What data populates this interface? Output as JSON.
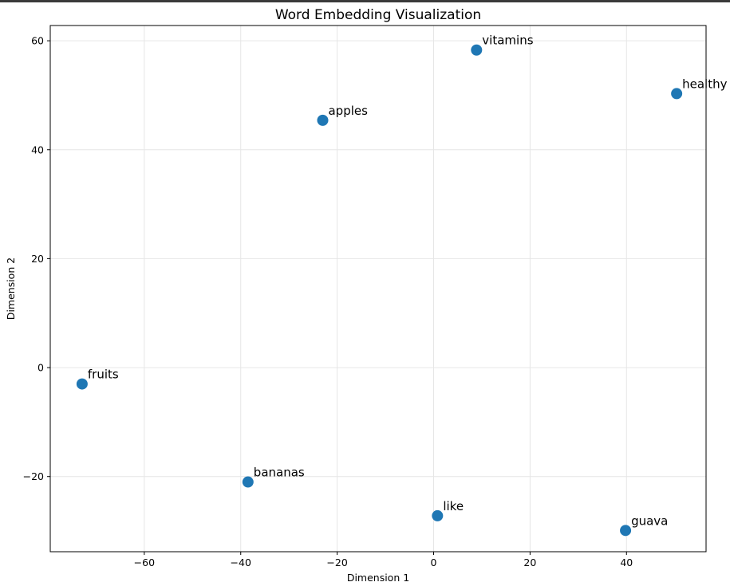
{
  "chart_data": {
    "type": "scatter",
    "title": "Word Embedding Visualization",
    "xlabel": "Dimension 1",
    "ylabel": "Dimension 2",
    "xlim": [
      -79.5,
      56.5
    ],
    "ylim": [
      -33.8,
      62.8
    ],
    "xticks": [
      -60,
      -40,
      -20,
      0,
      20,
      40
    ],
    "yticks": [
      -20,
      0,
      20,
      40,
      60
    ],
    "grid": true,
    "marker_color": "#1f77b4",
    "points": [
      {
        "label": "vitamins",
        "x": 8.9,
        "y": 58.3
      },
      {
        "label": "healthy",
        "x": 50.4,
        "y": 50.3
      },
      {
        "label": "apples",
        "x": -23.0,
        "y": 45.4
      },
      {
        "label": "fruits",
        "x": -72.9,
        "y": -3.0
      },
      {
        "label": "bananas",
        "x": -38.5,
        "y": -21.0
      },
      {
        "label": "like",
        "x": 0.8,
        "y": -27.2
      },
      {
        "label": "guava",
        "x": 39.8,
        "y": -29.9
      }
    ]
  }
}
